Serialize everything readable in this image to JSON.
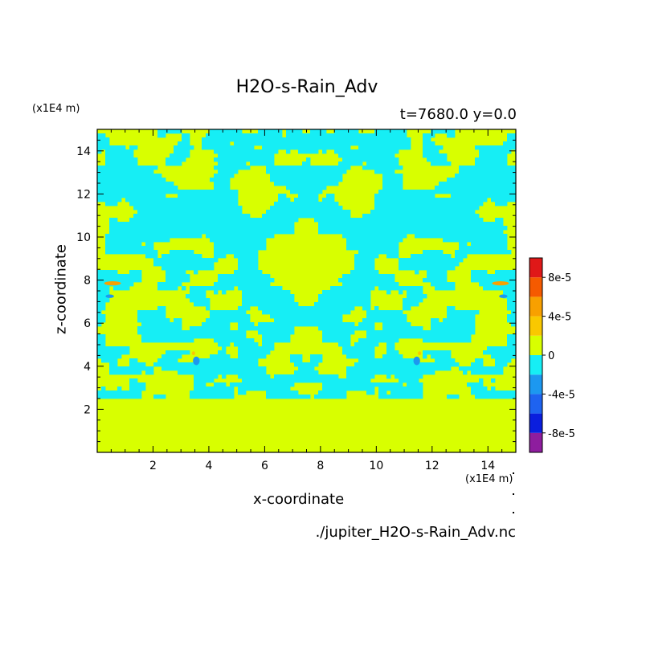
{
  "chart_data": {
    "type": "heatmap",
    "title": "H2O-s-Rain_Adv",
    "subtitle": "t=7680.0 y=0.0",
    "xlabel": "x-coordinate",
    "ylabel": "z-coordinate",
    "x_unit": "(x1E4 m)",
    "y_unit": "(x1E4 m)",
    "source": "./jupiter_H2O-s-Rain_Adv.nc",
    "xlim": [
      0,
      15
    ],
    "ylim": [
      0,
      15
    ],
    "x_ticks": [
      2,
      4,
      6,
      8,
      10,
      12,
      14
    ],
    "y_ticks": [
      2,
      4,
      6,
      8,
      10,
      12,
      14
    ],
    "x_tick_labels": [
      "2",
      "4",
      "6",
      "8",
      "10",
      "12",
      "14"
    ],
    "y_tick_labels": [
      "2",
      "4",
      "6",
      "8",
      "10",
      "12",
      "14"
    ],
    "colorbar": {
      "levels": [
        "-1e-4",
        "-8e-5",
        "-6e-5",
        "-4e-5",
        "-2e-5",
        "0",
        "2e-5",
        "4e-5",
        "6e-5",
        "8e-5",
        "1e-4"
      ],
      "labels": [
        "-8e-5",
        "-4e-5",
        "0",
        "4e-5",
        "8e-5"
      ],
      "label_values": [
        -8e-05,
        -4e-05,
        0,
        4e-05,
        8e-05
      ],
      "colors": [
        "#8e1d9e",
        "#0a1ede",
        "#1e63f0",
        "#1c98f0",
        "#16eef5",
        "#d8ff00",
        "#f9c800",
        "#f8a000",
        "#f55a00",
        "#e01818",
        "#f8a8a8"
      ]
    },
    "field_description": {
      "background_value_range": [
        0,
        2e-05
      ],
      "region_below_z": 2.5,
      "note": "field mirror-symmetric about x = 7.5; alternating bands of 0..2e-5 and -2e-5..0 above z = 2.5, small negative spots near (3.5,4.2) and (11.5,4.2), small positive spots near (0.5,7.8) and (14.5,7.8)"
    }
  }
}
